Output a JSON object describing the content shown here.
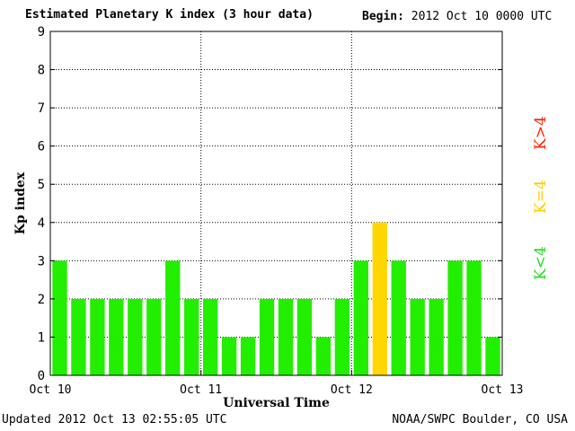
{
  "header": {
    "title": "Estimated Planetary K index (3 hour data)",
    "begin_label": "Begin:",
    "begin_value": "2012 Oct 10 0000 UTC"
  },
  "footer": {
    "updated": "Updated 2012 Oct 13 02:55:05 UTC",
    "credit": "NOAA/SWPC Boulder, CO USA"
  },
  "legend": {
    "items": [
      {
        "label": "K<4",
        "color": "#22dd22"
      },
      {
        "label": "K=4",
        "color": "#ffcc00"
      },
      {
        "label": "K>4",
        "color": "#ff2200"
      }
    ]
  },
  "chart_data": {
    "type": "bar",
    "ylabel": "Kp index",
    "xlabel": "Universal Time",
    "ylim": [
      0,
      9
    ],
    "yticks": [
      "0",
      "1",
      "2",
      "3",
      "4",
      "5",
      "6",
      "7",
      "8",
      "9"
    ],
    "xticks": [
      "Oct 10",
      "Oct 11",
      "Oct 12",
      "Oct 13"
    ],
    "grid": true,
    "values": [
      3,
      2,
      2,
      2,
      2,
      2,
      3,
      2,
      2,
      1,
      1,
      2,
      2,
      2,
      1,
      2,
      3,
      4,
      3,
      2,
      2,
      3,
      3,
      1
    ],
    "colors": {
      "below": "#22ee00",
      "equal": "#ffd700",
      "above": "#ff2200"
    }
  }
}
